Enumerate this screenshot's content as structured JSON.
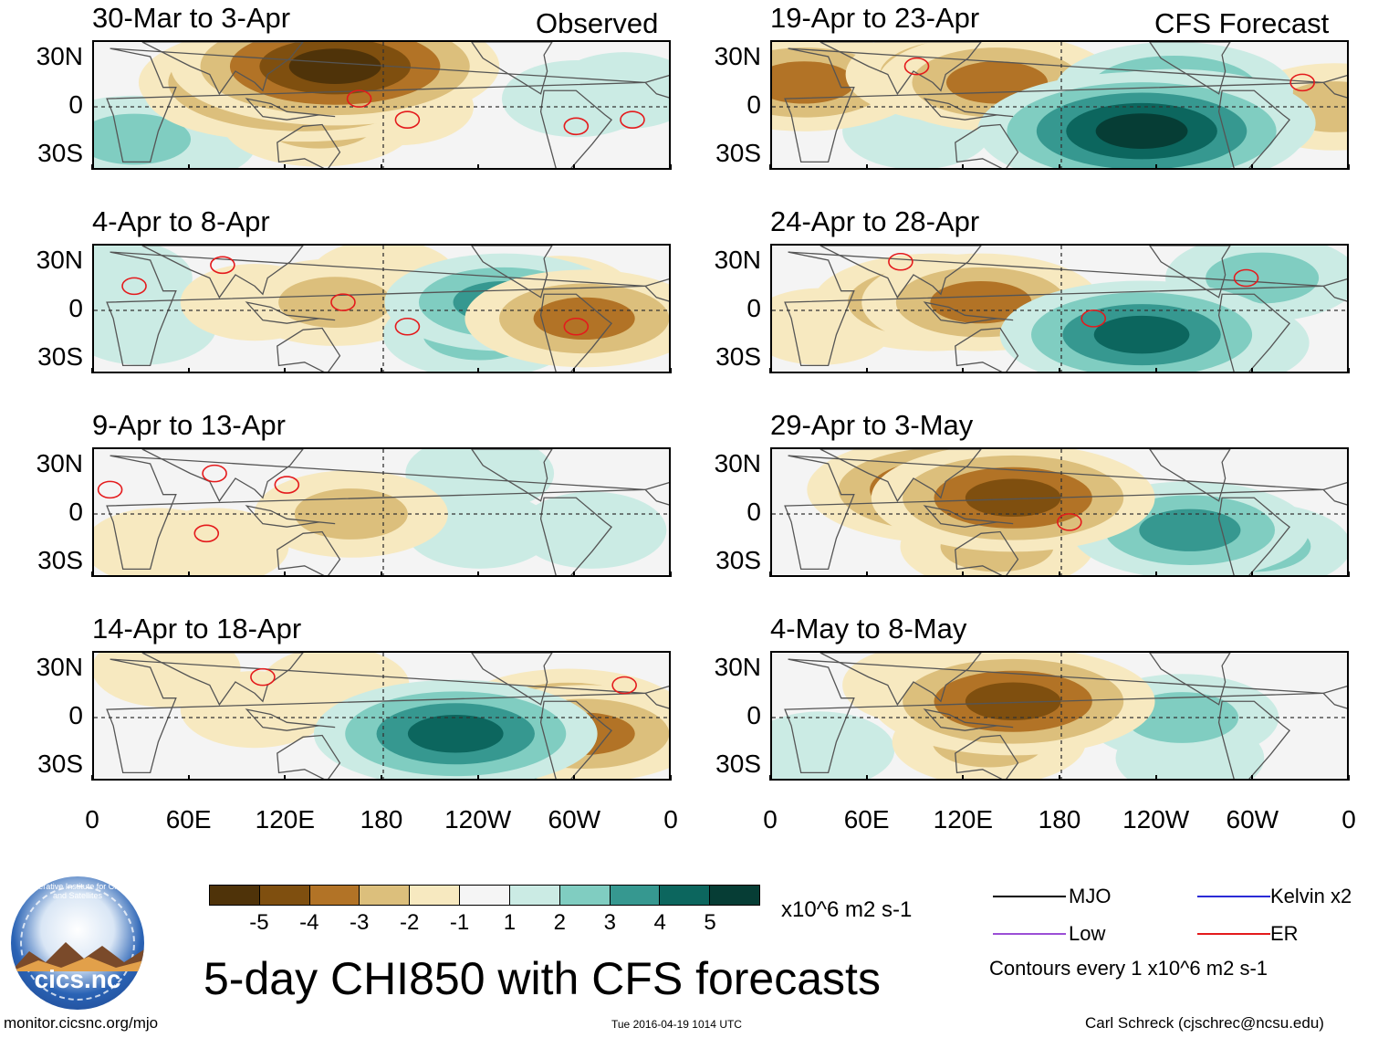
{
  "header": {
    "left_tag": "Observed",
    "right_tag": "CFS Forecast"
  },
  "colors": {
    "scale": [
      "#4f3309",
      "#7f4f0f",
      "#b27326",
      "#dcbf7c",
      "#f7e9c0",
      "#f5f5f5",
      "#cbebe4",
      "#80cdc1",
      "#369890",
      "#0c665e",
      "#063d35"
    ],
    "er_contour": "#e41a1c",
    "mjo": "#000000",
    "low": "#9b4fd6",
    "kelvin": "#2b2bd6",
    "ocean": "#f4f4f4",
    "coast": "#555555"
  },
  "chart_data": {
    "type": "heatmap",
    "title": "5-day CHI850 with CFS forecasts",
    "variable": "CHI850 anomaly",
    "units": "x10^6 m2 s-1",
    "contour_interval": 1,
    "colorbar_ticks": [
      "-5",
      "-4",
      "-3",
      "-2",
      "-1",
      "1",
      "2",
      "3",
      "4",
      "5"
    ],
    "xlabel": "",
    "ylabel": "",
    "x_ticks": [
      "0",
      "60E",
      "120E",
      "180",
      "120W",
      "60W",
      "0"
    ],
    "y_ticks": [
      "30N",
      "0",
      "30S"
    ],
    "panels": [
      {
        "title": "30-Mar to 3-Apr",
        "column": "Observed",
        "blobs": [
          [
            25,
            -20,
            2,
            2.5,
            2.5
          ],
          [
            55,
            -22,
            1,
            2.5,
            2.5
          ],
          [
            130,
            15,
            -5,
            2.5,
            2.5
          ],
          [
            150,
            25,
            -5,
            2.5,
            2.5
          ],
          [
            105,
            10,
            -3,
            2.5,
            2.5
          ],
          [
            140,
            -10,
            -2,
            2.5,
            2.5
          ],
          [
            190,
            0,
            -1,
            2.5,
            2.5
          ],
          [
            300,
            5,
            1,
            2.5,
            2.5
          ],
          [
            330,
            10,
            1,
            2.5,
            2.5
          ]
        ],
        "er": [
          [
            165,
            5
          ],
          [
            195,
            -8
          ],
          [
            335,
            -8
          ],
          [
            300,
            -12
          ]
        ]
      },
      {
        "title": "4-Apr to 8-Apr",
        "column": "Observed",
        "blobs": [
          [
            15,
            20,
            1,
            2.5,
            2.5
          ],
          [
            30,
            -10,
            1,
            2.5,
            2.5
          ],
          [
            100,
            5,
            -1,
            2.5,
            2.5
          ],
          [
            150,
            5,
            -2,
            2.5,
            2.5
          ],
          [
            180,
            20,
            -1,
            2.5,
            2.5
          ],
          [
            255,
            5,
            3,
            2.5,
            2.5
          ],
          [
            240,
            -15,
            2,
            2.5,
            2.5
          ],
          [
            305,
            -5,
            -3,
            2.5,
            2.5
          ],
          [
            290,
            10,
            -1,
            2.5,
            2.5
          ]
        ],
        "er": [
          [
            25,
            15
          ],
          [
            80,
            28
          ],
          [
            155,
            5
          ],
          [
            195,
            -10
          ],
          [
            300,
            -10
          ]
        ]
      },
      {
        "title": "9-Apr to 13-Apr",
        "column": "Observed",
        "blobs": [
          [
            40,
            -20,
            -1,
            2.5,
            2.5
          ],
          [
            75,
            -20,
            -1,
            2.5,
            2.5
          ],
          [
            160,
            0,
            -2,
            2.5,
            2.5
          ],
          [
            240,
            25,
            1,
            2.5,
            2.5
          ],
          [
            240,
            -10,
            1,
            2.5,
            2.5
          ],
          [
            310,
            -10,
            1,
            2.5,
            2.5
          ]
        ],
        "er": [
          [
            10,
            15
          ],
          [
            75,
            25
          ],
          [
            120,
            18
          ],
          [
            70,
            -12
          ]
        ]
      },
      {
        "title": "14-Apr to 18-Apr",
        "column": "Observed",
        "blobs": [
          [
            100,
            5,
            -1,
            2.5,
            2.5
          ],
          [
            150,
            20,
            -1,
            2.5,
            2.5
          ],
          [
            225,
            -10,
            4,
            2.5,
            2.5
          ],
          [
            250,
            -25,
            3,
            2.5,
            2.5
          ],
          [
            295,
            0,
            -3,
            2.5,
            2.5
          ],
          [
            305,
            -10,
            -3,
            2.5,
            2.5
          ],
          [
            45,
            30,
            -1,
            2.5,
            2.5
          ]
        ],
        "er": [
          [
            105,
            25
          ],
          [
            330,
            20
          ]
        ]
      },
      {
        "title": "19-Apr to 23-Apr",
        "column": "CFS Forecast",
        "blobs": [
          [
            20,
            15,
            -3,
            2.5,
            2.5
          ],
          [
            120,
            20,
            -3,
            2.5,
            2.5
          ],
          [
            140,
            15,
            -3,
            2.5,
            2.5
          ],
          [
            90,
            -15,
            1,
            2.5,
            2.5
          ],
          [
            230,
            -15,
            5,
            2.5,
            2.5
          ],
          [
            250,
            -10,
            4,
            2.5,
            2.5
          ],
          [
            250,
            10,
            3,
            2.5,
            2.5
          ],
          [
            350,
            0,
            -2,
            2.5,
            2.5
          ]
        ],
        "er": [
          [
            90,
            25
          ],
          [
            330,
            15
          ]
        ]
      },
      {
        "title": "24-Apr to 28-Apr",
        "column": "CFS Forecast",
        "blobs": [
          [
            30,
            -10,
            -1,
            2.5,
            2.5
          ],
          [
            100,
            5,
            -3,
            2.5,
            2.5
          ],
          [
            130,
            5,
            -3,
            2.5,
            2.5
          ],
          [
            230,
            -15,
            4,
            2.5,
            2.5
          ],
          [
            260,
            -20,
            3,
            2.5,
            2.5
          ],
          [
            305,
            20,
            2,
            2.5,
            2.5
          ]
        ],
        "er": [
          [
            80,
            30
          ],
          [
            200,
            -5
          ],
          [
            295,
            20
          ]
        ]
      },
      {
        "title": "29-Apr to 3-May",
        "column": "CFS Forecast",
        "blobs": [
          [
            110,
            15,
            -4,
            2.5,
            2.5
          ],
          [
            150,
            10,
            -4,
            2.5,
            2.5
          ],
          [
            140,
            -20,
            -2,
            2.5,
            2.5
          ],
          [
            260,
            -10,
            3,
            2.5,
            2.5
          ],
          [
            300,
            -20,
            2,
            2.5,
            2.5
          ]
        ],
        "er": [
          [
            185,
            -5
          ]
        ]
      },
      {
        "title": "4-May to 8-May",
        "column": "CFS Forecast",
        "blobs": [
          [
            90,
            20,
            -1,
            2.5,
            2.5
          ],
          [
            150,
            10,
            -4,
            2.5,
            2.5
          ],
          [
            135,
            -15,
            -2,
            2.5,
            2.5
          ],
          [
            30,
            -20,
            1,
            2.5,
            2.5
          ],
          [
            255,
            0,
            2,
            2.5,
            2.5
          ],
          [
            260,
            -25,
            1,
            2.5,
            2.5
          ]
        ],
        "er": []
      }
    ]
  },
  "colorbar": {
    "units_label": "x10^6 m2 s-1",
    "ticks": [
      "-5",
      "-4",
      "-3",
      "-2",
      "-1",
      "1",
      "2",
      "3",
      "4",
      "5"
    ]
  },
  "legend": {
    "mjo_label": "MJO",
    "kelvin_label": "Kelvin x2",
    "low_label": "Low",
    "er_label": "ER",
    "contour_note": "Contours every 1 x10^6 m2 s-1"
  },
  "footer": {
    "main_title": "5-day CHI850 with CFS forecasts",
    "website": "monitor.cicsnc.org/mjo",
    "timestamp": "Tue 2016-04-19 1014 UTC",
    "author": "Carl Schreck (cjschrec@ncsu.edu)",
    "logo_text": "cics.nc",
    "logo_ring_text": "Cooperative Institute for Climate and Satellites"
  }
}
